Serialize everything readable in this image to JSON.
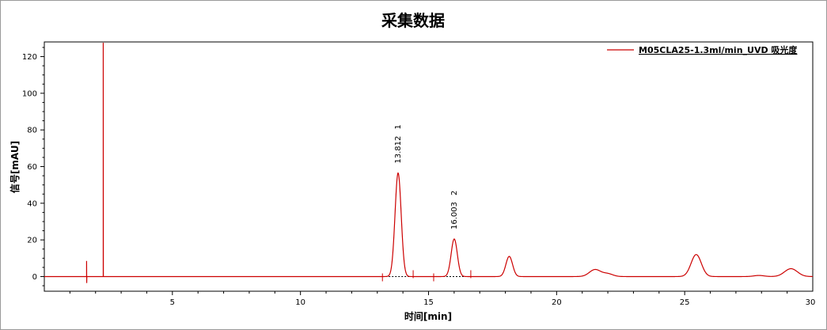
{
  "chart_data": {
    "type": "line",
    "title": "采集数据",
    "xlabel": "时间[min]",
    "ylabel": "信号[mAU]",
    "xlim": [
      0,
      30
    ],
    "ylim": [
      -8,
      128
    ],
    "x_ticks": [
      5,
      10,
      15,
      20,
      25,
      30
    ],
    "y_ticks": [
      0,
      20,
      40,
      60,
      80,
      100,
      120
    ],
    "grid": false,
    "legend_position": "top-right",
    "series": [
      {
        "name": "M05CLA25-1.3ml/min_UVD 吸光度",
        "color": "#cc0000",
        "baseline": 0,
        "spikes": [
          {
            "x": 1.65,
            "y_min": -3.5,
            "y_max": 8.5
          },
          {
            "x": 2.3,
            "y_min": 0,
            "y_max": 128
          }
        ],
        "peaks": [
          {
            "rt": 13.812,
            "height": 56.5,
            "sigma": 0.12
          },
          {
            "rt": 16.003,
            "height": 20.5,
            "sigma": 0.12
          },
          {
            "rt": 18.15,
            "height": 11,
            "sigma": 0.13
          },
          {
            "rt": 21.5,
            "height": 3.8,
            "sigma": 0.22
          },
          {
            "rt": 22.0,
            "height": 1.5,
            "sigma": 0.2
          },
          {
            "rt": 25.45,
            "height": 12,
            "sigma": 0.2
          },
          {
            "rt": 27.9,
            "height": 0.6,
            "sigma": 0.2
          },
          {
            "rt": 29.15,
            "height": 4.3,
            "sigma": 0.25
          }
        ]
      }
    ],
    "peak_labels": [
      {
        "rt": 13.812,
        "rt_text": "13.812",
        "number": "1",
        "height": 56.5
      },
      {
        "rt": 16.003,
        "rt_text": "16.003",
        "number": "2",
        "height": 20.5
      }
    ],
    "integration_baselines": [
      {
        "x_start": 13.2,
        "x_end": 14.4
      },
      {
        "x_start": 15.2,
        "x_end": 16.65
      }
    ]
  }
}
